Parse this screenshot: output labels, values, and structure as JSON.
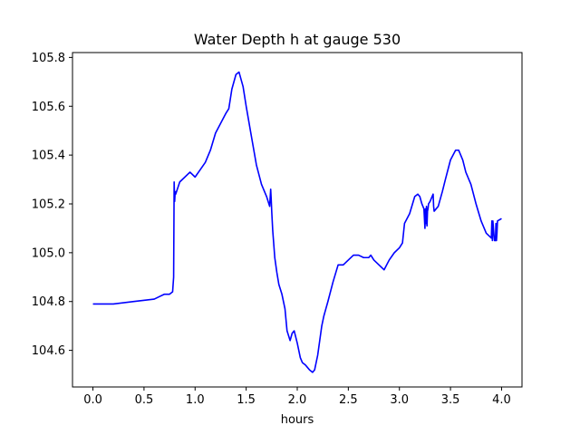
{
  "chart_data": {
    "type": "line",
    "title": "Water Depth h at gauge 530",
    "xlabel": "hours",
    "ylabel": "",
    "xlim": [
      -0.2,
      4.2
    ],
    "ylim": [
      104.45,
      105.82
    ],
    "x_ticks": [
      0.0,
      0.5,
      1.0,
      1.5,
      2.0,
      2.5,
      3.0,
      3.5,
      4.0
    ],
    "x_tick_labels": [
      "0.0",
      "0.5",
      "1.0",
      "1.5",
      "2.0",
      "2.5",
      "3.0",
      "3.5",
      "4.0"
    ],
    "y_ticks": [
      104.6,
      104.8,
      105.0,
      105.2,
      105.4,
      105.6,
      105.8
    ],
    "y_tick_labels": [
      "104.6",
      "104.8",
      "105.0",
      "105.2",
      "105.4",
      "105.6",
      "105.8"
    ],
    "grid": false,
    "colors": {
      "line": "#0000ff",
      "axes": "#000000",
      "background": "#ffffff"
    },
    "series": [
      {
        "x": [
          0.0,
          0.2,
          0.4,
          0.6,
          0.65,
          0.7,
          0.75,
          0.78,
          0.79,
          0.795,
          0.8,
          0.805,
          0.81,
          0.85,
          0.9,
          0.95,
          1.0,
          1.05,
          1.1,
          1.15,
          1.2,
          1.25,
          1.3,
          1.33,
          1.36,
          1.4,
          1.43,
          1.47,
          1.5,
          1.55,
          1.6,
          1.65,
          1.7,
          1.73,
          1.74,
          1.745,
          1.75,
          1.76,
          1.78,
          1.8,
          1.82,
          1.85,
          1.88,
          1.9,
          1.93,
          1.95,
          1.97,
          2.0,
          2.03,
          2.05,
          2.08,
          2.1,
          2.12,
          2.15,
          2.17,
          2.2,
          2.22,
          2.24,
          2.26,
          2.28,
          2.3,
          2.35,
          2.4,
          2.45,
          2.5,
          2.55,
          2.6,
          2.65,
          2.7,
          2.72,
          2.75,
          2.8,
          2.85,
          2.9,
          2.95,
          3.0,
          3.03,
          3.04,
          3.05,
          3.1,
          3.15,
          3.18,
          3.2,
          3.22,
          3.24,
          3.25,
          3.255,
          3.26,
          3.265,
          3.27,
          3.275,
          3.28,
          3.285,
          3.3,
          3.33,
          3.335,
          3.34,
          3.38,
          3.42,
          3.45,
          3.5,
          3.55,
          3.58,
          3.62,
          3.65,
          3.7,
          3.75,
          3.8,
          3.85,
          3.9,
          3.905,
          3.91,
          3.915,
          3.93,
          3.94,
          3.945,
          3.95,
          3.955,
          3.96,
          4.0
        ],
        "values": [
          104.79,
          104.79,
          104.8,
          104.81,
          104.82,
          104.83,
          104.83,
          104.84,
          104.9,
          105.29,
          105.21,
          105.25,
          105.24,
          105.29,
          105.31,
          105.33,
          105.31,
          105.34,
          105.37,
          105.42,
          105.49,
          105.53,
          105.57,
          105.59,
          105.67,
          105.73,
          105.74,
          105.68,
          105.6,
          105.48,
          105.36,
          105.28,
          105.23,
          105.19,
          105.26,
          105.22,
          105.17,
          105.09,
          104.98,
          104.92,
          104.87,
          104.83,
          104.77,
          104.68,
          104.64,
          104.67,
          104.68,
          104.63,
          104.57,
          104.55,
          104.54,
          104.53,
          104.52,
          104.51,
          104.52,
          104.58,
          104.64,
          104.7,
          104.74,
          104.77,
          104.8,
          104.88,
          104.95,
          104.95,
          104.97,
          104.99,
          104.99,
          104.98,
          104.98,
          104.99,
          104.97,
          104.95,
          104.93,
          104.97,
          105.0,
          105.02,
          105.04,
          105.08,
          105.12,
          105.16,
          105.23,
          105.24,
          105.23,
          105.2,
          105.18,
          105.1,
          105.18,
          105.12,
          105.19,
          105.11,
          105.17,
          105.18,
          105.2,
          105.21,
          105.24,
          105.19,
          105.17,
          105.19,
          105.25,
          105.3,
          105.38,
          105.42,
          105.42,
          105.38,
          105.33,
          105.28,
          105.2,
          105.13,
          105.08,
          105.06,
          105.13,
          105.05,
          105.13,
          105.05,
          105.05,
          105.12,
          105.05,
          105.08,
          105.13,
          105.14
        ]
      }
    ]
  }
}
